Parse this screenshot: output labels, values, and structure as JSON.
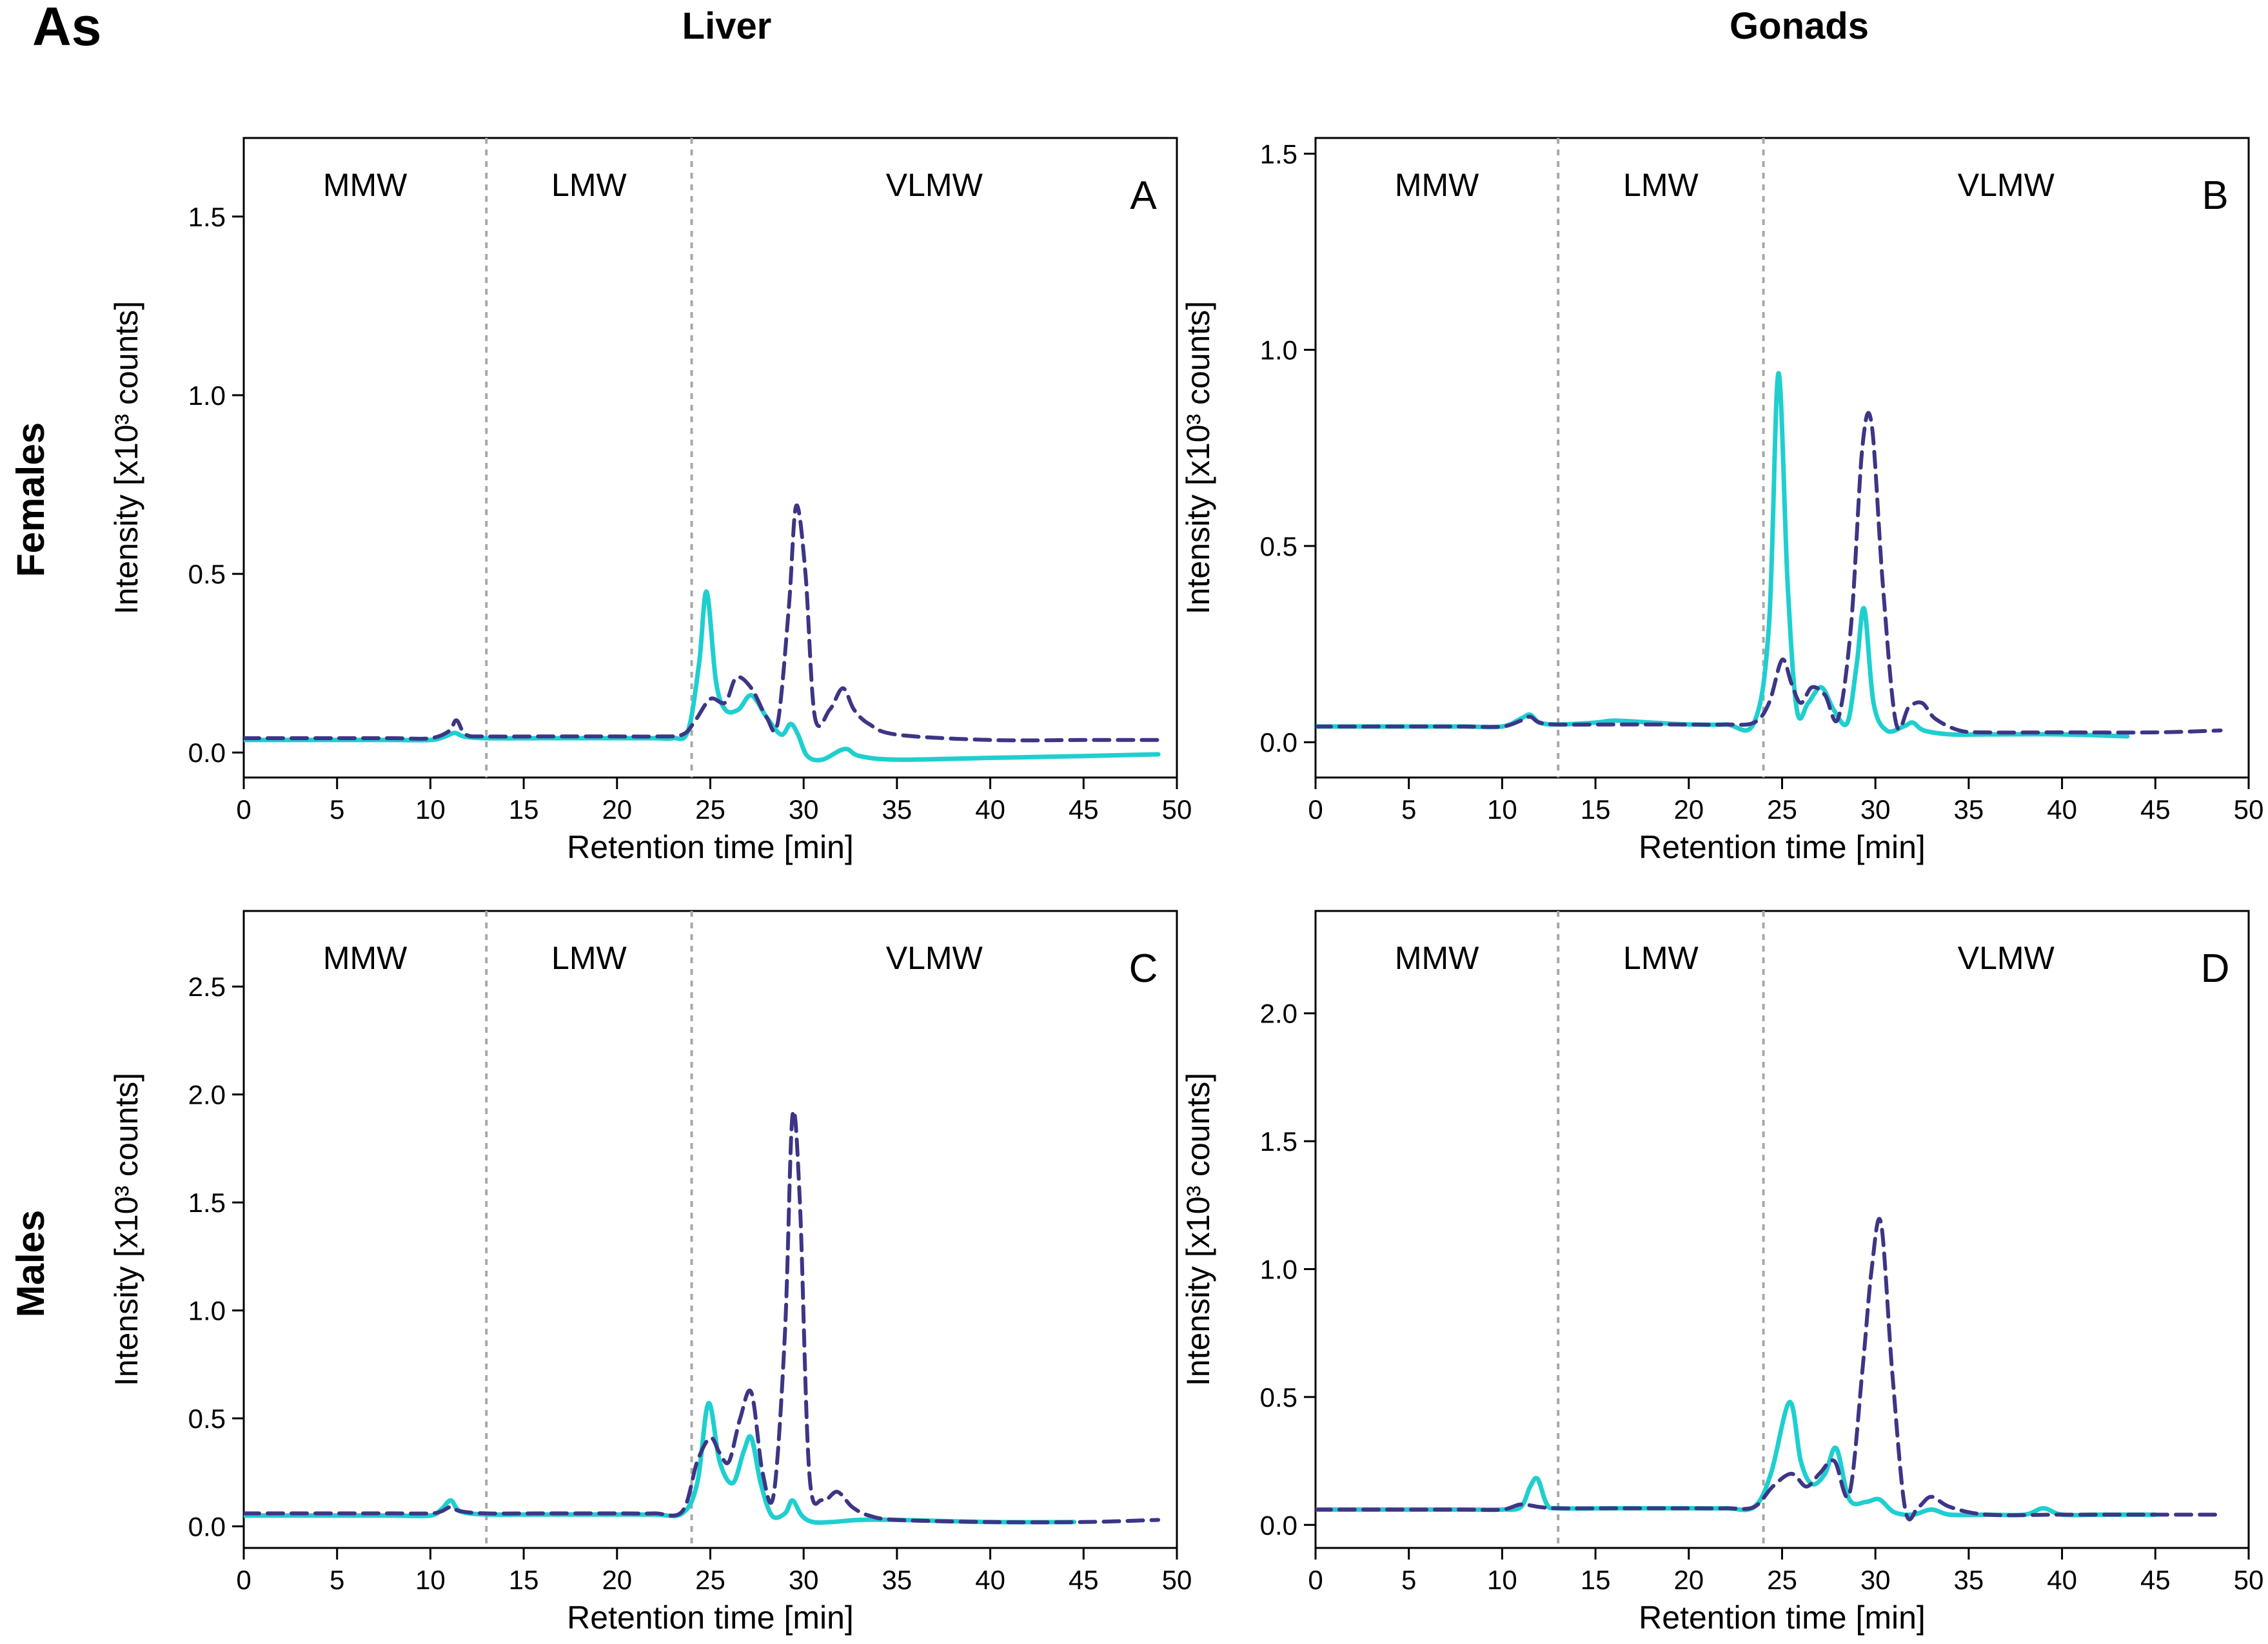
{
  "figure": {
    "element_label": "As",
    "column_headers": [
      "Liver",
      "Gonads"
    ],
    "row_headers": [
      "Females",
      "Males"
    ]
  },
  "colors": {
    "series_solid": "#1fcfcf",
    "series_dashed": "#3d3585",
    "region_divider": "#a8a8a8",
    "axes": "#000000"
  },
  "chart_data": [
    {
      "type": "line",
      "panel": "A",
      "xlabel": "Retention time [min]",
      "ylabel": "Intensity [x10³ counts]",
      "xlim": [
        0,
        50
      ],
      "ylim": [
        -0.07,
        1.72
      ],
      "xticks": [
        0,
        5,
        10,
        15,
        20,
        25,
        30,
        35,
        40,
        45,
        50
      ],
      "yticks": [
        "0.0",
        "0.5",
        "1.0",
        "1.5"
      ],
      "regions": [
        "MMW",
        "LMW",
        "VLMW"
      ],
      "region_boundaries": [
        13,
        24
      ],
      "grid": false,
      "series": [
        {
          "style": "solid",
          "x": [
            0,
            2,
            4,
            6,
            8,
            10,
            10.8,
            11.3,
            11.8,
            13,
            16,
            20,
            22,
            23,
            23.8,
            24.4,
            24.8,
            25.3,
            25.8,
            26.5,
            27.2,
            28,
            28.8,
            29.3,
            29.7,
            30.2,
            31,
            32.2,
            33,
            35,
            40,
            45,
            49
          ],
          "y": [
            0.035,
            0.035,
            0.035,
            0.035,
            0.035,
            0.035,
            0.045,
            0.055,
            0.045,
            0.04,
            0.04,
            0.04,
            0.04,
            0.04,
            0.06,
            0.25,
            0.45,
            0.2,
            0.12,
            0.12,
            0.16,
            0.1,
            0.05,
            0.08,
            0.05,
            -0.01,
            -0.02,
            0.01,
            -0.01,
            -0.02,
            -0.015,
            -0.01,
            -0.005
          ]
        },
        {
          "style": "dashed",
          "x": [
            0,
            2,
            4,
            6,
            8,
            10,
            11,
            11.4,
            11.9,
            13,
            16,
            20,
            22,
            23.5,
            24.2,
            25,
            25.8,
            26.4,
            27.2,
            28,
            28.6,
            29.2,
            29.6,
            30.1,
            30.6,
            31.4,
            32.1,
            32.7,
            33.5,
            35,
            40,
            45,
            49
          ],
          "y": [
            0.04,
            0.04,
            0.04,
            0.04,
            0.04,
            0.04,
            0.06,
            0.09,
            0.05,
            0.045,
            0.045,
            0.045,
            0.045,
            0.05,
            0.09,
            0.15,
            0.14,
            0.21,
            0.18,
            0.1,
            0.08,
            0.4,
            0.69,
            0.5,
            0.1,
            0.12,
            0.18,
            0.12,
            0.08,
            0.05,
            0.035,
            0.035,
            0.035
          ]
        }
      ]
    },
    {
      "type": "line",
      "panel": "B",
      "xlabel": "Retention time [min]",
      "ylabel": "Intensity [x10³ counts]",
      "xlim": [
        0,
        50
      ],
      "ylim": [
        -0.09,
        1.54
      ],
      "xticks": [
        0,
        5,
        10,
        15,
        20,
        25,
        30,
        35,
        40,
        45,
        50
      ],
      "yticks": [
        "0.0",
        "0.5",
        "1.0",
        "1.5"
      ],
      "regions": [
        "MMW",
        "LMW",
        "VLMW"
      ],
      "region_boundaries": [
        13,
        24
      ],
      "grid": false,
      "series": [
        {
          "style": "solid",
          "x": [
            0,
            2,
            4,
            6,
            8,
            10,
            11,
            11.5,
            12,
            13,
            15,
            16,
            18,
            20,
            22,
            23.5,
            24.3,
            24.8,
            25.3,
            25.8,
            26.4,
            27.1,
            27.8,
            28.5,
            29,
            29.4,
            29.9,
            30.6,
            31.5,
            32,
            32.6,
            34,
            36,
            40,
            43.5
          ],
          "y": [
            0.04,
            0.04,
            0.04,
            0.04,
            0.04,
            0.04,
            0.06,
            0.07,
            0.05,
            0.045,
            0.05,
            0.055,
            0.05,
            0.045,
            0.045,
            0.05,
            0.3,
            0.94,
            0.4,
            0.08,
            0.1,
            0.14,
            0.08,
            0.05,
            0.2,
            0.34,
            0.1,
            0.03,
            0.04,
            0.05,
            0.03,
            0.02,
            0.02,
            0.02,
            0.015
          ]
        },
        {
          "style": "dashed",
          "x": [
            0,
            2,
            4,
            6,
            8,
            10,
            11,
            11.5,
            12,
            13,
            16,
            20,
            22,
            23.5,
            24.3,
            25,
            25.5,
            26,
            26.6,
            27.3,
            28,
            28.7,
            29.3,
            29.8,
            30.4,
            31.1,
            31.8,
            32.5,
            33.2,
            34.5,
            36,
            40,
            45,
            48.5
          ],
          "y": [
            0.04,
            0.04,
            0.04,
            0.04,
            0.04,
            0.04,
            0.055,
            0.065,
            0.05,
            0.045,
            0.045,
            0.045,
            0.045,
            0.05,
            0.1,
            0.21,
            0.15,
            0.1,
            0.14,
            0.12,
            0.06,
            0.3,
            0.75,
            0.81,
            0.4,
            0.05,
            0.09,
            0.1,
            0.06,
            0.03,
            0.025,
            0.025,
            0.025,
            0.03
          ]
        }
      ]
    },
    {
      "type": "line",
      "panel": "C",
      "xlabel": "Retention time [min]",
      "ylabel": "Intensity [x10³ counts]",
      "xlim": [
        0,
        50
      ],
      "ylim": [
        -0.1,
        2.85
      ],
      "xticks": [
        0,
        5,
        10,
        15,
        20,
        25,
        30,
        35,
        40,
        45,
        50
      ],
      "yticks": [
        "0.0",
        "0.5",
        "1.0",
        "1.5",
        "2.0",
        "2.5"
      ],
      "regions": [
        "MMW",
        "LMW",
        "VLMW"
      ],
      "region_boundaries": [
        13,
        24
      ],
      "grid": false,
      "series": [
        {
          "style": "solid",
          "x": [
            0,
            2,
            4,
            6,
            8,
            10,
            10.6,
            11.1,
            11.6,
            13,
            16,
            20,
            22,
            23.5,
            24.3,
            24.9,
            25.5,
            26.2,
            26.8,
            27.2,
            27.7,
            28.3,
            29,
            29.4,
            29.9,
            30.5,
            31.5,
            33,
            35,
            40,
            44.5
          ],
          "y": [
            0.05,
            0.05,
            0.05,
            0.05,
            0.05,
            0.05,
            0.08,
            0.12,
            0.07,
            0.055,
            0.055,
            0.055,
            0.055,
            0.06,
            0.2,
            0.57,
            0.3,
            0.2,
            0.35,
            0.41,
            0.2,
            0.05,
            0.06,
            0.12,
            0.05,
            0.02,
            0.02,
            0.03,
            0.03,
            0.02,
            0.02
          ]
        },
        {
          "style": "dashed",
          "x": [
            0,
            2,
            4,
            6,
            8,
            10,
            10.6,
            11.1,
            11.6,
            13,
            16,
            20,
            22,
            23.5,
            24.3,
            25,
            25.5,
            26,
            26.6,
            27.2,
            27.8,
            28.4,
            29,
            29.4,
            29.8,
            30.3,
            31,
            31.8,
            32.6,
            33.5,
            35,
            40,
            45,
            49
          ],
          "y": [
            0.06,
            0.06,
            0.06,
            0.06,
            0.06,
            0.06,
            0.07,
            0.09,
            0.07,
            0.06,
            0.06,
            0.06,
            0.06,
            0.07,
            0.3,
            0.41,
            0.34,
            0.3,
            0.5,
            0.62,
            0.25,
            0.15,
            0.9,
            1.9,
            1.5,
            0.25,
            0.12,
            0.16,
            0.09,
            0.05,
            0.03,
            0.02,
            0.02,
            0.03
          ]
        }
      ]
    },
    {
      "type": "line",
      "panel": "D",
      "xlabel": "Retention time [min]",
      "ylabel": "Intensity [x10³ counts]",
      "xlim": [
        0,
        50
      ],
      "ylim": [
        -0.09,
        2.4
      ],
      "xticks": [
        0,
        5,
        10,
        15,
        20,
        25,
        30,
        35,
        40,
        45,
        50
      ],
      "yticks": [
        "0.0",
        "0.5",
        "1.0",
        "1.5",
        "2.0"
      ],
      "regions": [
        "MMW",
        "LMW",
        "VLMW"
      ],
      "region_boundaries": [
        13,
        24
      ],
      "grid": false,
      "series": [
        {
          "style": "solid",
          "x": [
            0,
            2,
            4,
            6,
            8,
            10,
            11,
            11.5,
            11.9,
            12.4,
            13,
            16,
            20,
            22,
            23.5,
            24.4,
            25.4,
            26,
            26.6,
            27.3,
            27.9,
            28.6,
            29.5,
            30.2,
            31,
            32,
            33,
            34,
            36,
            38,
            39,
            40,
            42,
            45
          ],
          "y": [
            0.06,
            0.06,
            0.06,
            0.06,
            0.06,
            0.06,
            0.07,
            0.15,
            0.18,
            0.08,
            0.065,
            0.065,
            0.065,
            0.065,
            0.07,
            0.2,
            0.48,
            0.25,
            0.16,
            0.2,
            0.3,
            0.1,
            0.09,
            0.1,
            0.05,
            0.04,
            0.06,
            0.04,
            0.04,
            0.04,
            0.065,
            0.04,
            0.04,
            0.04
          ]
        },
        {
          "style": "dashed",
          "x": [
            0,
            2,
            4,
            6,
            8,
            10,
            11,
            12,
            13,
            16,
            20,
            22,
            23.5,
            24.5,
            25.5,
            26.3,
            27,
            27.8,
            28.6,
            29.3,
            29.8,
            30.3,
            30.9,
            31.6,
            32.3,
            33,
            34,
            36,
            40,
            45,
            48.5
          ],
          "y": [
            0.06,
            0.06,
            0.06,
            0.06,
            0.06,
            0.06,
            0.08,
            0.07,
            0.065,
            0.065,
            0.065,
            0.065,
            0.07,
            0.15,
            0.2,
            0.15,
            0.2,
            0.25,
            0.12,
            0.6,
            1.0,
            1.18,
            0.6,
            0.06,
            0.07,
            0.11,
            0.07,
            0.04,
            0.04,
            0.04,
            0.04
          ]
        }
      ]
    }
  ]
}
